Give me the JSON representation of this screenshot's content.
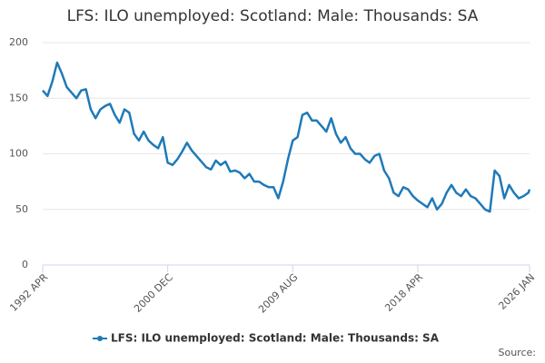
{
  "chart_data": {
    "type": "line",
    "title": "LFS: ILO unemployed: Scotland: Male: Thousands: SA",
    "source": "Source:",
    "x": [
      "1992 APR",
      "1992 AUG",
      "1992 DEC",
      "1993 APR",
      "1993 AUG",
      "1993 DEC",
      "1994 APR",
      "1994 AUG",
      "1994 DEC",
      "1995 APR",
      "1995 AUG",
      "1995 DEC",
      "1996 APR",
      "1996 AUG",
      "1996 DEC",
      "1997 APR",
      "1997 AUG",
      "1997 DEC",
      "1998 APR",
      "1998 AUG",
      "1998 DEC",
      "1999 APR",
      "1999 AUG",
      "1999 DEC",
      "2000 APR",
      "2000 AUG",
      "2000 DEC",
      "2001 APR",
      "2001 AUG",
      "2001 DEC",
      "2002 APR",
      "2002 AUG",
      "2002 DEC",
      "2003 APR",
      "2003 AUG",
      "2003 DEC",
      "2004 APR",
      "2004 AUG",
      "2004 DEC",
      "2005 APR",
      "2005 AUG",
      "2005 DEC",
      "2006 APR",
      "2006 AUG",
      "2006 DEC",
      "2007 APR",
      "2007 AUG",
      "2007 DEC",
      "2008 APR",
      "2008 AUG",
      "2008 DEC",
      "2009 APR",
      "2009 AUG",
      "2009 DEC",
      "2010 APR",
      "2010 AUG",
      "2010 DEC",
      "2011 APR",
      "2011 AUG",
      "2011 DEC",
      "2012 APR",
      "2012 AUG",
      "2012 DEC",
      "2013 APR",
      "2013 AUG",
      "2013 DEC",
      "2014 APR",
      "2014 AUG",
      "2014 DEC",
      "2015 APR",
      "2015 AUG",
      "2015 DEC",
      "2016 APR",
      "2016 AUG",
      "2016 DEC",
      "2017 APR",
      "2017 AUG",
      "2017 DEC",
      "2018 APR",
      "2018 AUG",
      "2018 DEC",
      "2019 APR",
      "2019 AUG",
      "2019 DEC",
      "2020 APR",
      "2020 AUG",
      "2020 DEC",
      "2021 APR",
      "2021 AUG",
      "2021 DEC",
      "2022 APR",
      "2022 AUG",
      "2022 DEC",
      "2023 APR",
      "2023 AUG",
      "2023 DEC",
      "2024 APR",
      "2024 AUG",
      "2024 DEC",
      "2025 APR",
      "2025 AUG",
      "2025 DEC",
      "2026 JAN"
    ],
    "series": [
      {
        "name": "LFS: ILO unemployed: Scotland: Male: Thousands: SA",
        "color": "#1f7ab8",
        "values": [
          157,
          152,
          165,
          182,
          172,
          160,
          155,
          150,
          157,
          158,
          140,
          132,
          140,
          143,
          145,
          135,
          128,
          140,
          137,
          118,
          112,
          120,
          112,
          108,
          105,
          115,
          92,
          90,
          95,
          102,
          110,
          103,
          98,
          93,
          88,
          86,
          94,
          90,
          93,
          84,
          85,
          83,
          78,
          82,
          75,
          75,
          72,
          70,
          70,
          60,
          75,
          95,
          112,
          115,
          135,
          137,
          130,
          130,
          125,
          120,
          132,
          118,
          110,
          115,
          105,
          100,
          100,
          95,
          92,
          98,
          100,
          85,
          78,
          65,
          62,
          70,
          68,
          62,
          58,
          55,
          52,
          60,
          50,
          55,
          65,
          72,
          65,
          62,
          68,
          62,
          60,
          55,
          50,
          48,
          85,
          80,
          60,
          72,
          65,
          60,
          62,
          65,
          68
        ]
      }
    ],
    "xlim": [
      "1992 APR",
      "2026 JAN"
    ],
    "xticks": [
      "1992 APR",
      "2000 DEC",
      "2009 AUG",
      "2018 APR",
      "2026 JAN"
    ],
    "ylim": [
      0,
      200
    ],
    "yticks": [
      0,
      50,
      100,
      150,
      200
    ],
    "grid": true
  }
}
